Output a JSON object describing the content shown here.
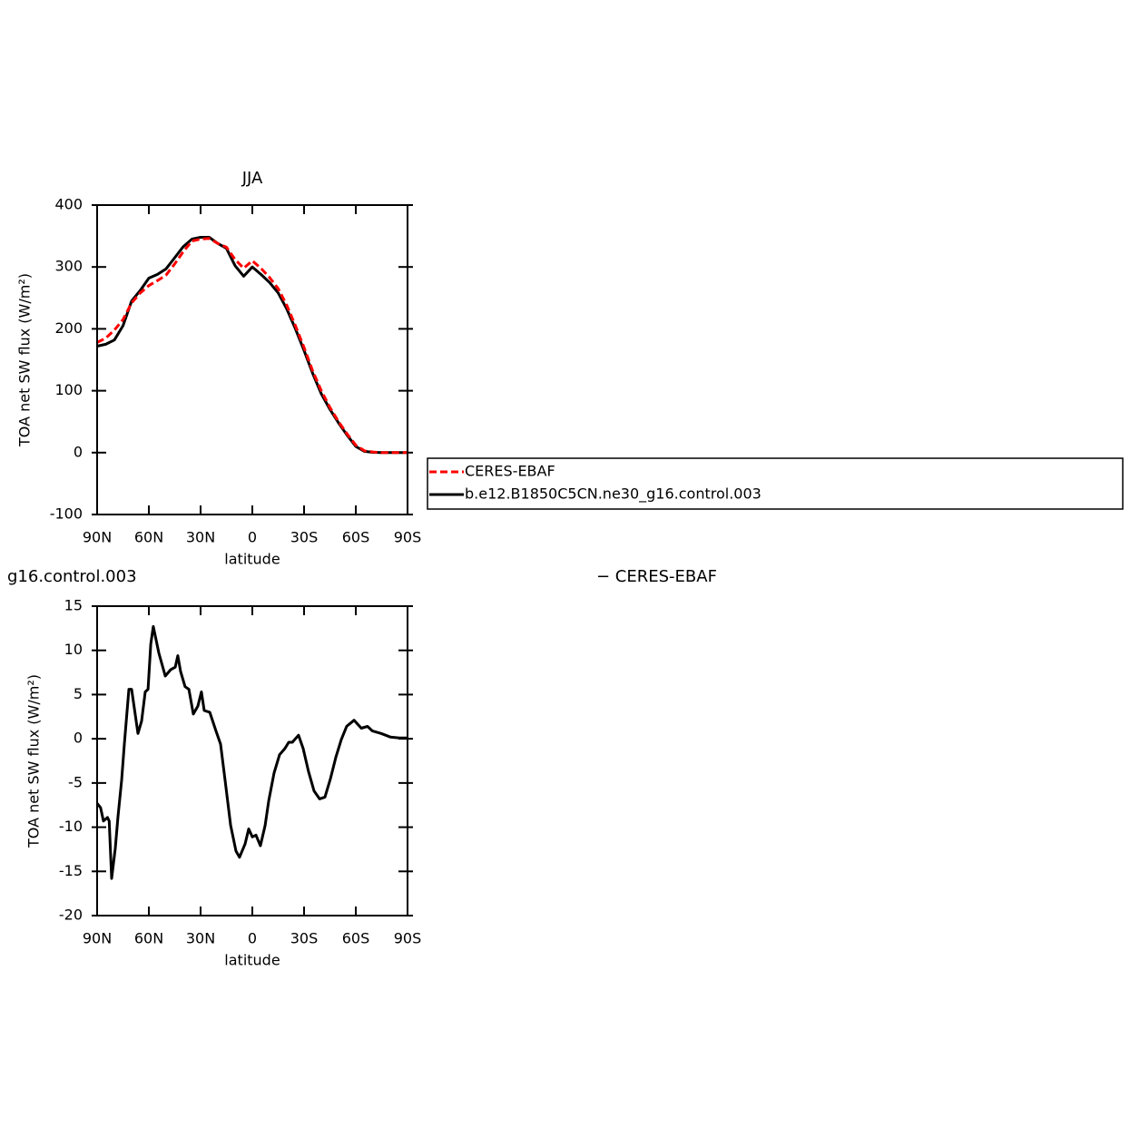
{
  "chart_data": [
    {
      "type": "line",
      "title": "JJA",
      "xlabel": "latitude",
      "ylabel": "TOA net SW flux (W/m²)",
      "xlim": [
        90,
        -90
      ],
      "ylim": [
        -100,
        400
      ],
      "xticks": [
        {
          "value": 90,
          "label": "90N"
        },
        {
          "value": 60,
          "label": "60N"
        },
        {
          "value": 30,
          "label": "30N"
        },
        0,
        {
          "value": -30,
          "label": "30S"
        },
        {
          "value": -60,
          "label": "60S"
        },
        {
          "value": -90,
          "label": "90S"
        }
      ],
      "yticks": [
        -100,
        0,
        100,
        200,
        300,
        400
      ],
      "legend": "right",
      "x": [
        90,
        85,
        80,
        75,
        70,
        65,
        60,
        55,
        50,
        45,
        40,
        35,
        30,
        25,
        20,
        15,
        10,
        5,
        0,
        -5,
        -10,
        -15,
        -20,
        -25,
        -30,
        -35,
        -40,
        -45,
        -50,
        -55,
        -60,
        -65,
        -70,
        -75,
        -80,
        -85,
        -90
      ],
      "series": [
        {
          "name": "CERES-EBAF",
          "color": "#ff0000",
          "dashed": true,
          "values": [
            178,
            185,
            198,
            215,
            242,
            258,
            270,
            278,
            287,
            305,
            325,
            342,
            345,
            346,
            338,
            332,
            312,
            298,
            310,
            298,
            283,
            265,
            238,
            205,
            170,
            132,
            100,
            73,
            50,
            30,
            12,
            3,
            1,
            0,
            0,
            0,
            0
          ]
        },
        {
          "name": "b.e12.B1850C5CN.ne30_g16.control.003",
          "color": "#000000",
          "dashed": false,
          "values": [
            172,
            175,
            182,
            205,
            245,
            262,
            282,
            288,
            297,
            315,
            333,
            345,
            348,
            348,
            338,
            330,
            302,
            285,
            300,
            288,
            275,
            258,
            232,
            200,
            165,
            128,
            95,
            70,
            48,
            28,
            10,
            2,
            0.5,
            0,
            0,
            0,
            0
          ]
        }
      ]
    },
    {
      "type": "line",
      "title": "g16.control.003",
      "title_right": "− CERES-EBAF",
      "xlabel": "latitude",
      "ylabel": "TOA net SW flux (W/m²)",
      "xlim": [
        90,
        -90
      ],
      "ylim": [
        -20,
        15
      ],
      "xticks": [
        {
          "value": 90,
          "label": "90N"
        },
        {
          "value": 60,
          "label": "60N"
        },
        {
          "value": 30,
          "label": "30N"
        },
        0,
        {
          "value": -30,
          "label": "30S"
        },
        {
          "value": -60,
          "label": "60S"
        },
        {
          "value": -90,
          "label": "90S"
        }
      ],
      "yticks": [
        -20,
        -15,
        -10,
        -5,
        0,
        5,
        10,
        15
      ],
      "x": [
        90,
        88,
        86.3,
        84,
        83,
        81.6,
        79.5,
        77.9,
        75.8,
        74.2,
        71.6,
        70,
        66.3,
        64.2,
        62.1,
        60.5,
        58.9,
        57.4,
        54.2,
        50.5,
        47.4,
        44.7,
        43.2,
        41.6,
        39,
        36.8,
        34.2,
        31.6,
        29.5,
        27.9,
        24.7,
        21.1,
        18.4,
        15.8,
        12.6,
        9.5,
        7.4,
        4.2,
        2.1,
        0,
        -2.1,
        -4.7,
        -7.4,
        -9.5,
        -12.6,
        -15.8,
        -18.9,
        -21.1,
        -23.2,
        -26.8,
        -29.5,
        -32.6,
        -35.8,
        -39,
        -42.1,
        -45.3,
        -48.4,
        -51.6,
        -54.7,
        -59,
        -63.2,
        -66.8,
        -69.5,
        -74.7,
        -80,
        -85.3,
        -90
      ],
      "series": [
        {
          "color": "#000000",
          "dashed": false,
          "values": [
            -7.3,
            -7.8,
            -9.3,
            -8.9,
            -9.3,
            -15.8,
            -12.4,
            -8.8,
            -4.7,
            -0.6,
            5.6,
            5.6,
            0.6,
            2.0,
            5.3,
            5.6,
            10.7,
            12.7,
            9.7,
            7.1,
            7.8,
            8.1,
            9.4,
            7.6,
            5.9,
            5.6,
            2.8,
            3.7,
            5.3,
            3.2,
            3.0,
            0.9,
            -0.6,
            -4.7,
            -9.8,
            -12.7,
            -13.4,
            -11.9,
            -10.2,
            -11.1,
            -10.9,
            -12.1,
            -9.8,
            -7.0,
            -3.9,
            -1.8,
            -1.1,
            -0.4,
            -0.4,
            0.4,
            -1.1,
            -3.7,
            -5.9,
            -6.8,
            -6.6,
            -4.5,
            -2.1,
            -0.1,
            1.4,
            2.1,
            1.2,
            1.4,
            0.9,
            0.6,
            0.2,
            0.1,
            0.1
          ]
        }
      ]
    }
  ]
}
